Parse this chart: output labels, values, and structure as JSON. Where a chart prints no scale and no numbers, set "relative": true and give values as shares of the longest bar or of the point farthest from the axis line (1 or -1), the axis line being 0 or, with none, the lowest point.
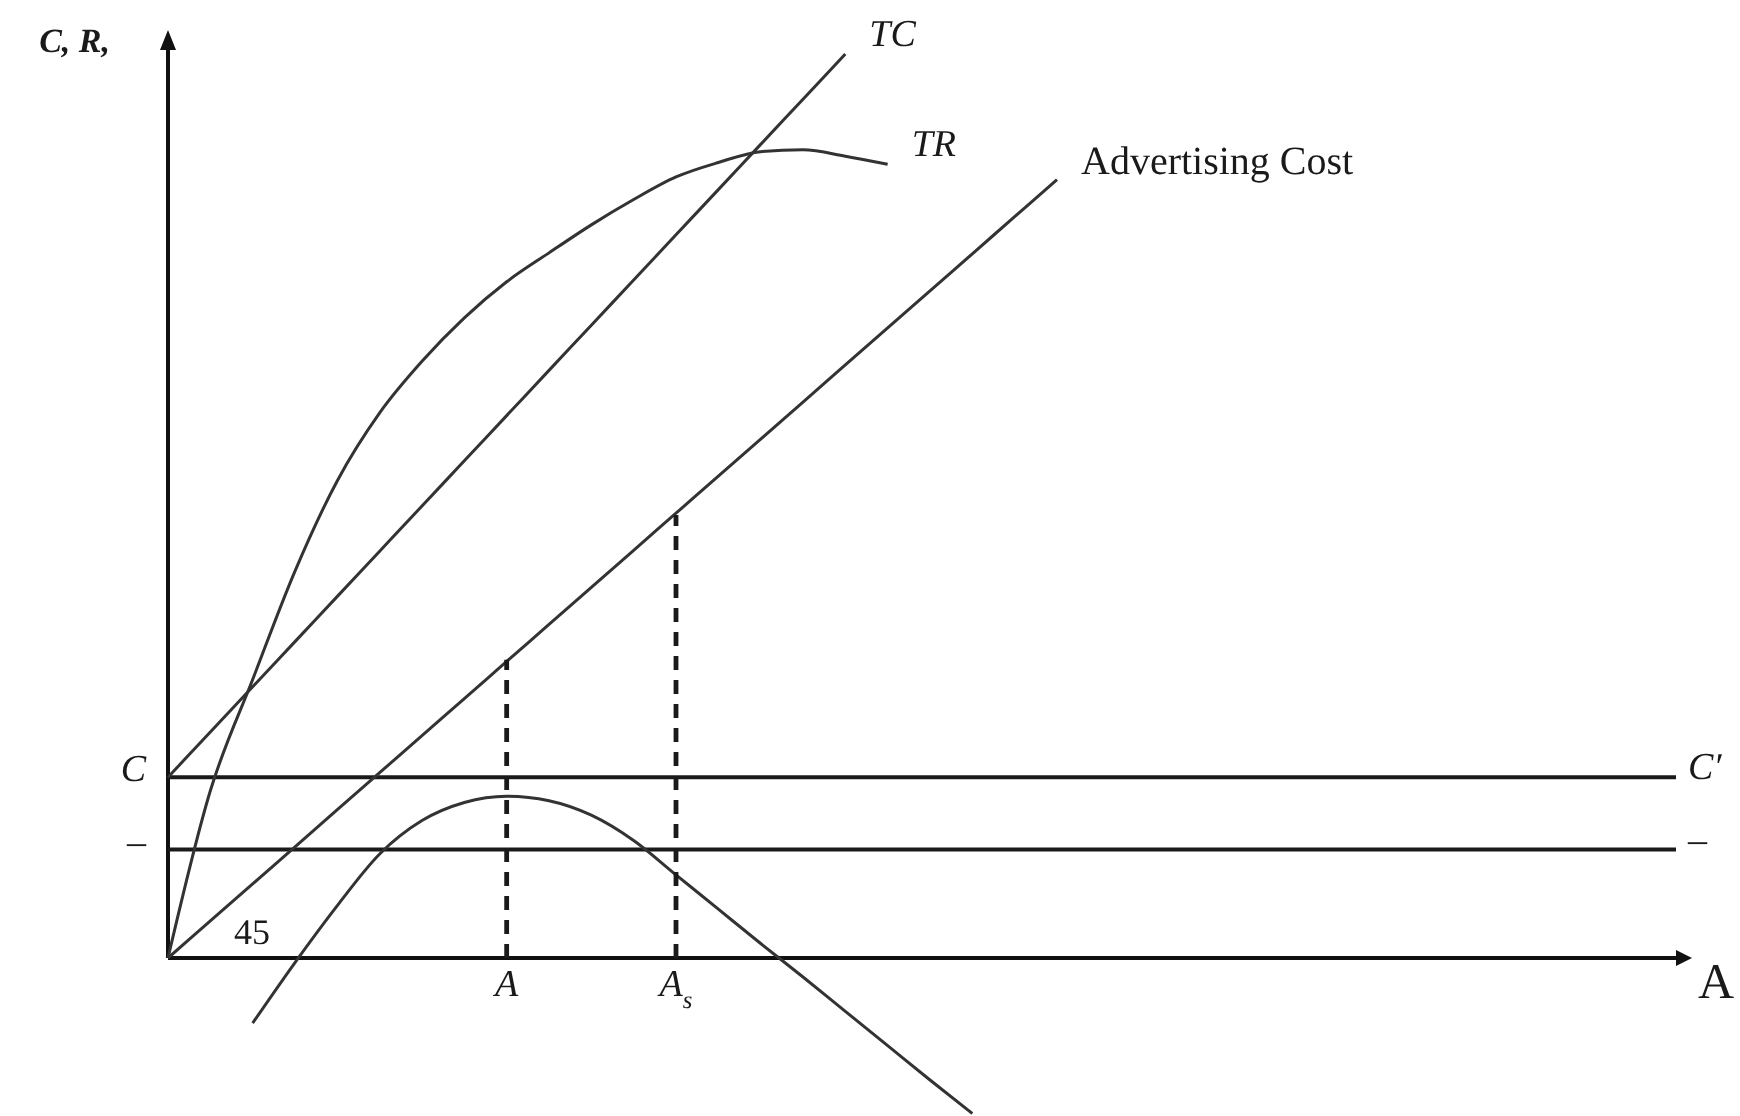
{
  "chart_data": {
    "type": "line",
    "relative": true,
    "ylabel": "C, R,",
    "xlabel": "A",
    "categories": [
      null,
      null,
      null,
      null,
      null,
      null,
      null,
      null,
      "A",
      null,
      null,
      null,
      "A$_{s}$",
      null,
      null,
      null,
      null,
      null,
      null,
      null,
      null,
      null,
      null,
      null,
      null,
      null,
      null,
      null,
      null,
      null,
      null,
      null,
      null,
      null,
      null,
      null,
      null
    ],
    "series": [
      {
        "name": "TC",
        "color": "#333333",
        "values": [
          0.2,
          0.25,
          0.3,
          0.35,
          0.4,
          0.45,
          0.5,
          0.55,
          0.6,
          0.65,
          0.7,
          0.75,
          0.8,
          0.85,
          0.9,
          0.95,
          1,
          null,
          null,
          null,
          null,
          null,
          null,
          null,
          null,
          null,
          null,
          null,
          null,
          null,
          null,
          null,
          null,
          null,
          null,
          null,
          null
        ]
      },
      {
        "name": "TR",
        "color": "#333333",
        "values": [
          0,
          0.185,
          0.308,
          0.428,
          0.528,
          0.603,
          0.66,
          0.708,
          0.748,
          0.78,
          0.811,
          0.839,
          0.864,
          0.88,
          0.892,
          0.894,
          0.887,
          0.878,
          null,
          null,
          null,
          null,
          null,
          null,
          null,
          null,
          null,
          null,
          null,
          null,
          null,
          null,
          null,
          null,
          null,
          null,
          null
        ]
      },
      {
        "name": "Advertising Cost",
        "color": "#333333",
        "values": [
          0,
          0.041,
          0.082,
          0.123,
          0.164,
          0.205,
          0.246,
          0.287,
          0.328,
          0.369,
          0.41,
          0.451,
          0.492,
          0.533,
          0.574,
          0.615,
          0.656,
          0.697,
          0.738,
          0.779,
          0.82,
          0.861,
          null,
          null,
          null,
          null,
          null,
          null,
          null,
          null,
          null,
          null,
          null,
          null,
          null,
          null,
          null
        ]
      },
      {
        "color": "#333333",
        "values": [
          null,
          null,
          -0.072,
          -0.005,
          0.058,
          0.115,
          0.152,
          0.172,
          0.179,
          0.174,
          0.158,
          0.13,
          0.092,
          0.054,
          0.016,
          -0.021,
          -0.059,
          -0.097,
          -0.135,
          -0.172,
          null,
          null,
          null,
          null,
          null,
          null,
          null,
          null,
          null,
          null,
          null,
          null,
          null,
          null,
          null,
          null,
          null
        ]
      },
      {
        "color": "#1a1a1a",
        "line_style": "dashed",
        "x": [
          "A",
          "A"
        ],
        "values": [
          0,
          0.33
        ]
      },
      {
        "color": "#1a1a1a",
        "line_style": "dashed",
        "x": [
          "A$_{s}$",
          "A$_{s}$"
        ],
        "values": [
          0,
          0.49
        ]
      }
    ],
    "ref_lines": [
      {
        "axis": "y",
        "value": 0.2,
        "label": "C",
        "color": "#1a1a1a"
      },
      {
        "axis": "y",
        "value": 0.12,
        "label": "–",
        "color": "#1a1a1a"
      }
    ],
    "annotations": [
      "C′",
      "–",
      "45"
    ]
  }
}
